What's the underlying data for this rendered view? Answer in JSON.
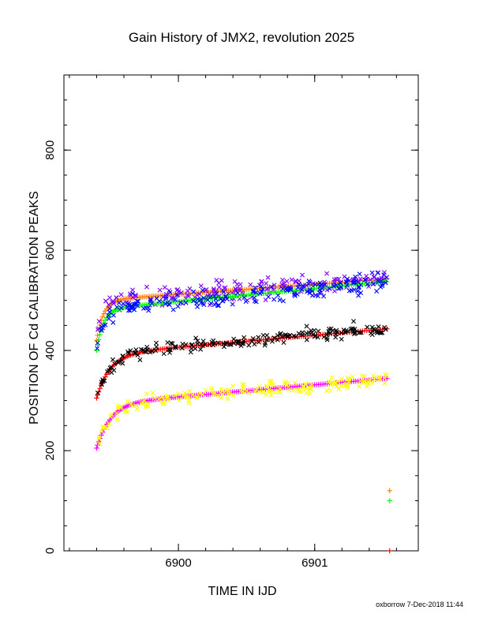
{
  "chart_data": {
    "type": "scatter",
    "title": "Gain History of JMX2, revolution 2025",
    "xlabel": "TIME IN IJD",
    "ylabel": "POSITION OF Cd CALIBRATION PEAKS",
    "xlim": [
      6899.16,
      6901.76
    ],
    "ylim": [
      0,
      950
    ],
    "x_ticks": [
      6900,
      6901
    ],
    "x_tick_labels": [
      "6900",
      "6901"
    ],
    "y_ticks": [
      0,
      200,
      400,
      600,
      800
    ],
    "y_tick_labels": [
      "0",
      "200",
      "400",
      "600",
      "800"
    ],
    "x_minor_step": 0.2,
    "y_minor_step": 50,
    "grid": false,
    "legend": "none",
    "time_range": [
      6899.4,
      6901.53
    ],
    "series": [
      {
        "color": "#ff8000",
        "marker": "plus",
        "role": "fit",
        "start": 420,
        "rise": 80,
        "tau": 0.05,
        "slope": 20,
        "n": 150
      },
      {
        "color": "#8000ff",
        "marker": "cross",
        "role": "measured",
        "start": 420,
        "rise": 80,
        "tau": 0.05,
        "slope": 20,
        "n": 180,
        "scatter": 14
      },
      {
        "color": "#00ff00",
        "marker": "plus",
        "role": "fit",
        "start": 400,
        "rise": 82,
        "tau": 0.05,
        "slope": 26,
        "n": 150
      },
      {
        "color": "#0000ff",
        "marker": "cross",
        "role": "measured",
        "start": 400,
        "rise": 82,
        "tau": 0.05,
        "slope": 26,
        "n": 180,
        "scatter": 14
      },
      {
        "color": "#ff0000",
        "marker": "plus",
        "role": "fit",
        "start": 305,
        "rise": 87,
        "tau": 0.1,
        "slope": 24,
        "n": 150
      },
      {
        "color": "#000000",
        "marker": "cross",
        "role": "measured",
        "start": 305,
        "rise": 87,
        "tau": 0.1,
        "slope": 24,
        "n": 180,
        "scatter": 9
      },
      {
        "color": "#ff00ff",
        "marker": "plus",
        "role": "fit",
        "start": 205,
        "rise": 88,
        "tau": 0.1,
        "slope": 24,
        "n": 150
      },
      {
        "color": "#ffff00",
        "marker": "cross",
        "role": "measured",
        "start": 205,
        "rise": 88,
        "tau": 0.1,
        "slope": 24,
        "n": 180,
        "scatter": 10
      }
    ],
    "outlier_points": [
      {
        "x": 6901.55,
        "y": 120,
        "color": "#ff8000",
        "marker": "plus"
      },
      {
        "x": 6901.55,
        "y": 100,
        "color": "#00ff00",
        "marker": "plus"
      },
      {
        "x": 6901.55,
        "y": 0,
        "color": "#ff0000",
        "marker": "plus"
      }
    ]
  },
  "footer": {
    "text": "oxborrow  7-Dec-2018 11:44"
  }
}
